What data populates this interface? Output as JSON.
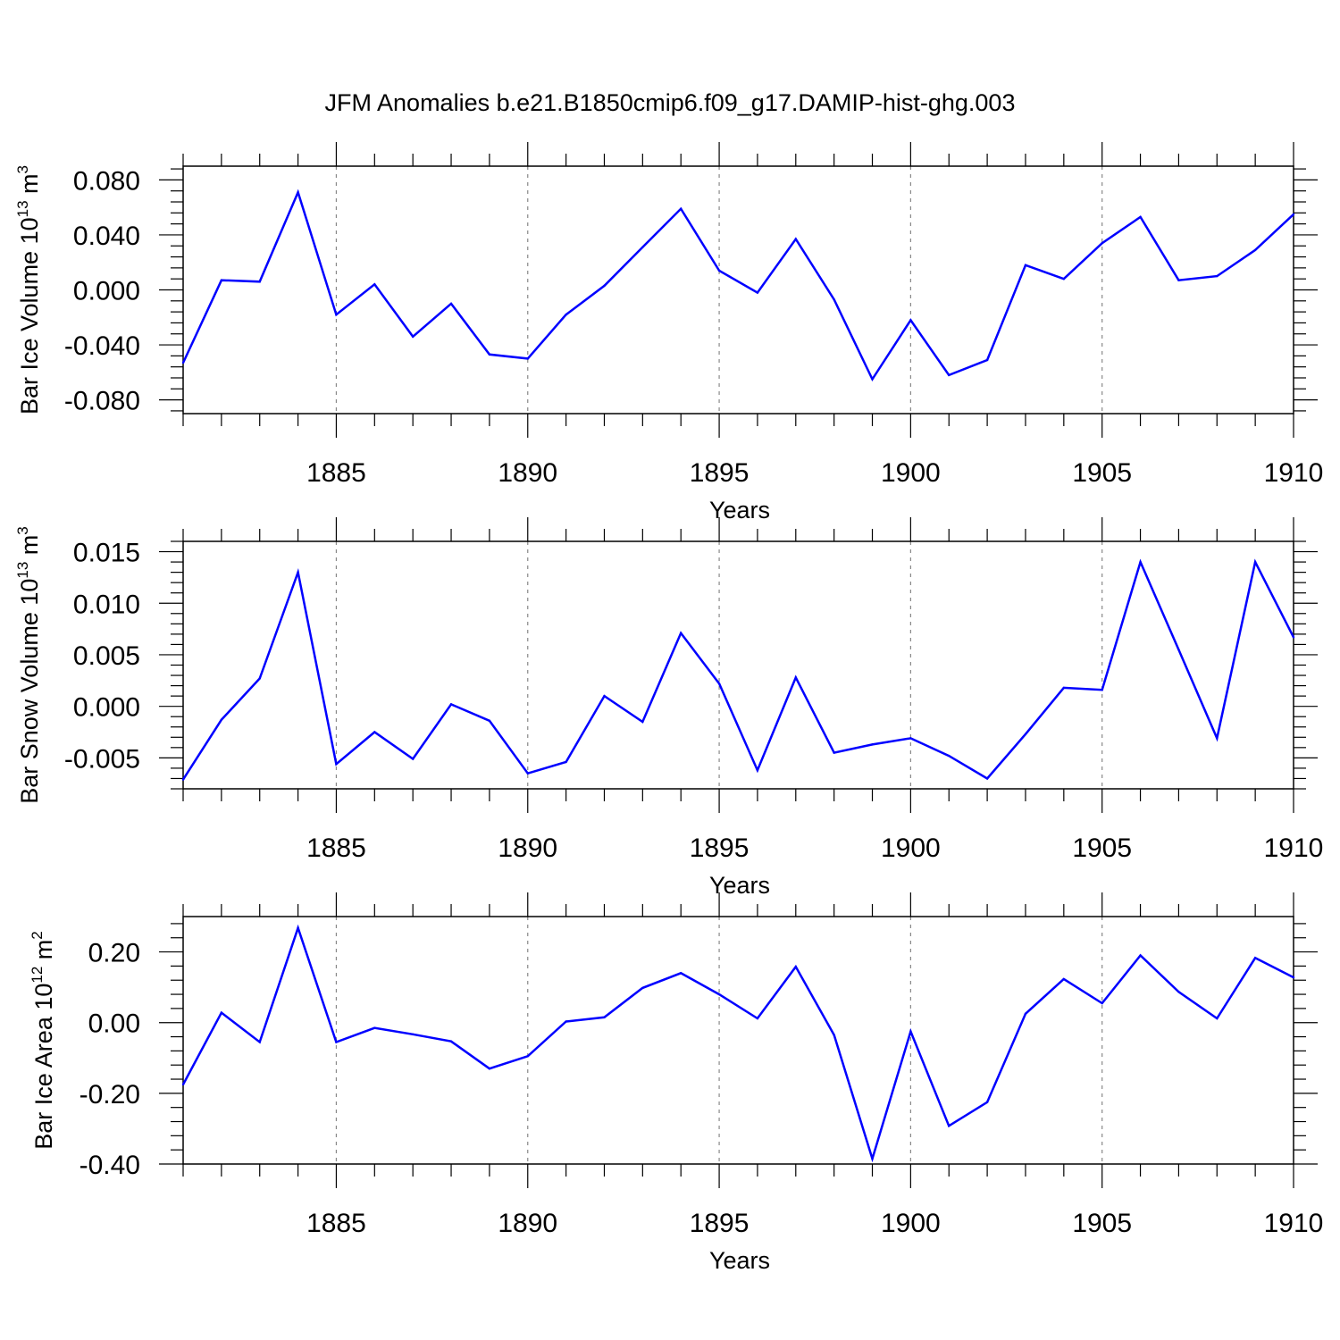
{
  "title": "JFM Anomalies b.e21.B1850cmip6.f09_g17.DAMIP-hist-ghg.003",
  "colors": {
    "line": "#0000ff",
    "axis": "#000000",
    "grid": "#888888"
  },
  "chart_data": [
    {
      "type": "line",
      "ylabel_main": "Bar Ice Volume 10",
      "ylabel_exp": "13",
      "ylabel_unit": " m",
      "ylabel_unit_exp": "3",
      "xlabel": "Years",
      "xlim": [
        1881,
        1910
      ],
      "ylim": [
        -0.09,
        0.09
      ],
      "x_ticks": [
        "1885",
        "1890",
        "1895",
        "1900",
        "1905",
        "1910"
      ],
      "y_ticks": [
        "0.080",
        "0.040",
        "0.000",
        "-0.040",
        "-0.080"
      ],
      "y_tick_values": [
        0.08,
        0.04,
        0.0,
        -0.04,
        -0.08
      ],
      "x": [
        1881,
        1882,
        1883,
        1884,
        1885,
        1886,
        1887,
        1888,
        1889,
        1890,
        1891,
        1892,
        1893,
        1894,
        1895,
        1896,
        1897,
        1898,
        1899,
        1900,
        1901,
        1902,
        1903,
        1904,
        1905,
        1906,
        1907,
        1908,
        1909,
        1910
      ],
      "values": [
        -0.053,
        0.007,
        0.006,
        0.071,
        -0.018,
        0.004,
        -0.034,
        -0.01,
        -0.047,
        -0.05,
        -0.018,
        0.003,
        0.031,
        0.059,
        0.014,
        -0.002,
        0.037,
        -0.007,
        -0.065,
        -0.022,
        -0.062,
        -0.051,
        0.018,
        0.008,
        0.034,
        0.053,
        0.007,
        0.01,
        0.029,
        0.055
      ]
    },
    {
      "type": "line",
      "ylabel_main": "Bar Snow Volume 10",
      "ylabel_exp": "13",
      "ylabel_unit": " m",
      "ylabel_unit_exp": "3",
      "xlabel": "Years",
      "xlim": [
        1881,
        1910
      ],
      "ylim": [
        -0.008,
        0.016
      ],
      "x_ticks": [
        "1885",
        "1890",
        "1895",
        "1900",
        "1905",
        "1910"
      ],
      "y_ticks": [
        "0.015",
        "0.010",
        "0.005",
        "0.000",
        "-0.005"
      ],
      "y_tick_values": [
        0.015,
        0.01,
        0.005,
        0.0,
        -0.005
      ],
      "x": [
        1881,
        1882,
        1883,
        1884,
        1885,
        1886,
        1887,
        1888,
        1889,
        1890,
        1891,
        1892,
        1893,
        1894,
        1895,
        1896,
        1897,
        1898,
        1899,
        1900,
        1901,
        1902,
        1903,
        1904,
        1905,
        1906,
        1907,
        1908,
        1909,
        1910
      ],
      "values": [
        -0.0071,
        -0.0013,
        0.0027,
        0.013,
        -0.0056,
        -0.0025,
        -0.0051,
        0.0002,
        -0.0014,
        -0.0065,
        -0.0054,
        0.001,
        -0.0015,
        0.0071,
        0.0022,
        -0.0062,
        0.0028,
        -0.0045,
        -0.0037,
        -0.0031,
        -0.0048,
        -0.007,
        -0.0027,
        0.0018,
        0.0016,
        0.014,
        0.0055,
        -0.0031,
        0.014,
        0.0067
      ]
    },
    {
      "type": "line",
      "ylabel_main": "Bar Ice Area 10",
      "ylabel_exp": "12",
      "ylabel_unit": " m",
      "ylabel_unit_exp": "2",
      "xlabel": "Years",
      "xlim": [
        1881,
        1910
      ],
      "ylim": [
        -0.4,
        0.3
      ],
      "x_ticks": [
        "1885",
        "1890",
        "1895",
        "1900",
        "1905",
        "1910"
      ],
      "y_ticks": [
        "0.20",
        "0.00",
        "-0.20",
        "-0.40"
      ],
      "y_tick_values": [
        0.2,
        0.0,
        -0.2,
        -0.4
      ],
      "x": [
        1881,
        1882,
        1883,
        1884,
        1885,
        1886,
        1887,
        1888,
        1889,
        1890,
        1891,
        1892,
        1893,
        1894,
        1895,
        1896,
        1897,
        1898,
        1899,
        1900,
        1901,
        1902,
        1903,
        1904,
        1905,
        1906,
        1907,
        1908,
        1909,
        1910
      ],
      "values": [
        -0.175,
        0.028,
        -0.055,
        0.268,
        -0.055,
        -0.015,
        -0.033,
        -0.053,
        -0.13,
        -0.095,
        0.003,
        0.015,
        0.098,
        0.14,
        0.08,
        0.012,
        0.158,
        -0.035,
        -0.385,
        -0.025,
        -0.292,
        -0.225,
        0.025,
        0.123,
        0.055,
        0.19,
        0.087,
        0.012,
        0.183,
        0.128
      ]
    }
  ]
}
